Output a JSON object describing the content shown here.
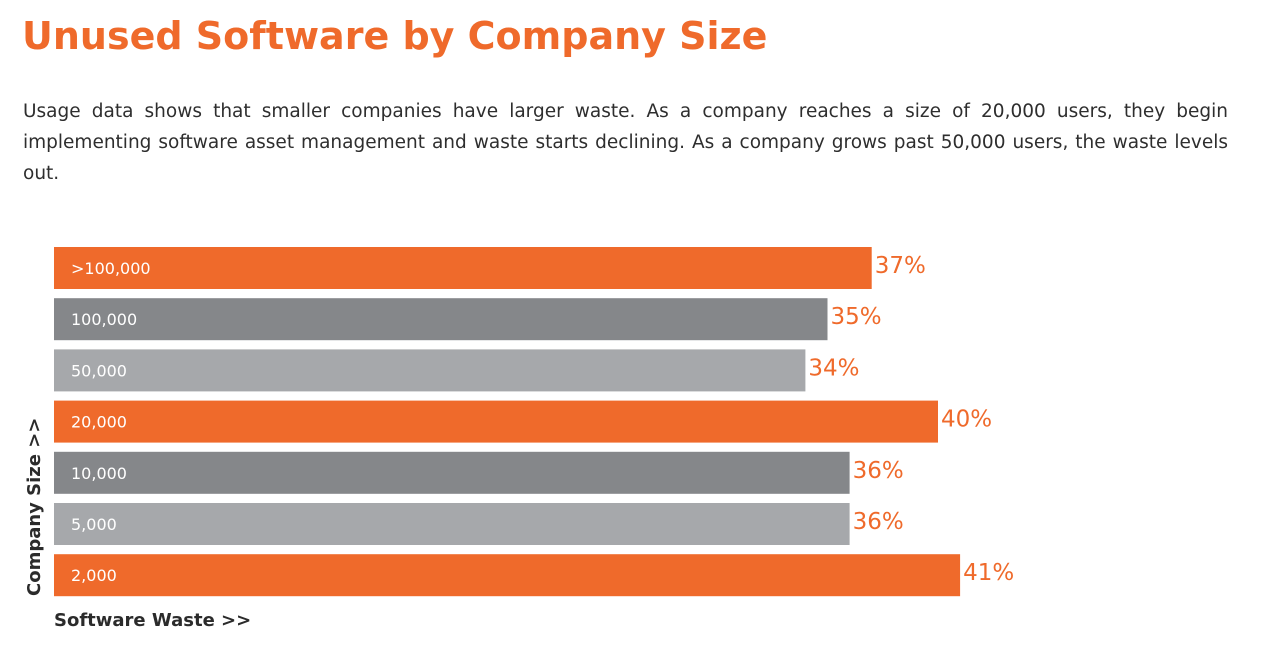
{
  "header": {
    "title": "Unused Software by Company Size",
    "description": "Usage data shows that smaller companies have larger waste. As a company reaches a size of 20,000 users, they begin implementing software asset management and waste starts declining. As a company grows past 50,000 users, the waste levels out."
  },
  "colors": {
    "orange": "#ef6a2b",
    "dark_gray": "#85878a",
    "light_gray": "#a6a8ab"
  },
  "chart_data": {
    "type": "bar",
    "orientation": "horizontal",
    "title": "Unused Software by Company Size",
    "xlabel": "Software Waste >>",
    "ylabel": "Company Size >>",
    "xlim": [
      0,
      45
    ],
    "grid": false,
    "legend": "none",
    "categories": [
      ">100,000",
      "100,000",
      "50,000",
      "20,000",
      "10,000",
      "5,000",
      "2,000"
    ],
    "values": [
      37,
      35,
      34,
      40,
      36,
      36,
      41
    ],
    "value_labels": [
      "37%",
      "35%",
      "34%",
      "40%",
      "36%",
      "36%",
      "41%"
    ],
    "bar_colors": [
      "#ef6a2b",
      "#85878a",
      "#a6a8ab",
      "#ef6a2b",
      "#85878a",
      "#a6a8ab",
      "#ef6a2b"
    ],
    "value_label_color": "#ef6a2b"
  }
}
